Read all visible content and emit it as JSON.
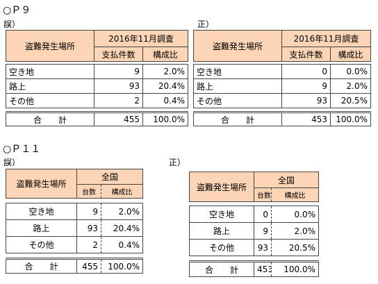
{
  "sections": [
    {
      "heading": "○Ｐ９",
      "tables": [
        {
          "label": "誤）",
          "header": {
            "place": "盗難発生場所",
            "period": "2016年11月調査",
            "cols": [
              "支払件数",
              "構成比"
            ]
          },
          "rows": [
            [
              "空き地",
              "9",
              "2.0%"
            ],
            [
              "路上",
              "93",
              "20.4%"
            ],
            [
              "その他",
              "2",
              "0.4%"
            ]
          ],
          "total": [
            "合　　計",
            "455",
            "100.0%"
          ]
        },
        {
          "label": "正）",
          "header": {
            "place": "盗難発生場所",
            "period": "2016年11月調査",
            "cols": [
              "支払件数",
              "構成比"
            ]
          },
          "rows": [
            [
              "空き地",
              "0",
              "0.0%"
            ],
            [
              "路上",
              "9",
              "2.0%"
            ],
            [
              "その他",
              "93",
              "20.5%"
            ]
          ],
          "total": [
            "合　　計",
            "453",
            "100.0%"
          ]
        }
      ]
    },
    {
      "heading": "○Ｐ１１",
      "tables": [
        {
          "label": "誤）",
          "header": {
            "place": "盗難発生場所",
            "period": "全国",
            "cols": [
              "台数",
              "構成比"
            ]
          },
          "rows": [
            [
              "空き地",
              "9",
              "2.0%"
            ],
            [
              "路上",
              "93",
              "20.4%"
            ],
            [
              "その他",
              "2",
              "0.4%"
            ]
          ],
          "total": [
            "合　　計",
            "455",
            "100.0%"
          ]
        },
        {
          "label": "正）",
          "header": {
            "place": "盗難発生場所",
            "period": "全国",
            "cols": [
              "台数",
              "構成比"
            ]
          },
          "rows": [
            [
              "空き地",
              "0",
              "0.0%"
            ],
            [
              "路上",
              "9",
              "2.0%"
            ],
            [
              "その他",
              "93",
              "20.5%"
            ]
          ],
          "total": [
            "合　　計",
            "453",
            "100.0%"
          ]
        }
      ]
    }
  ]
}
